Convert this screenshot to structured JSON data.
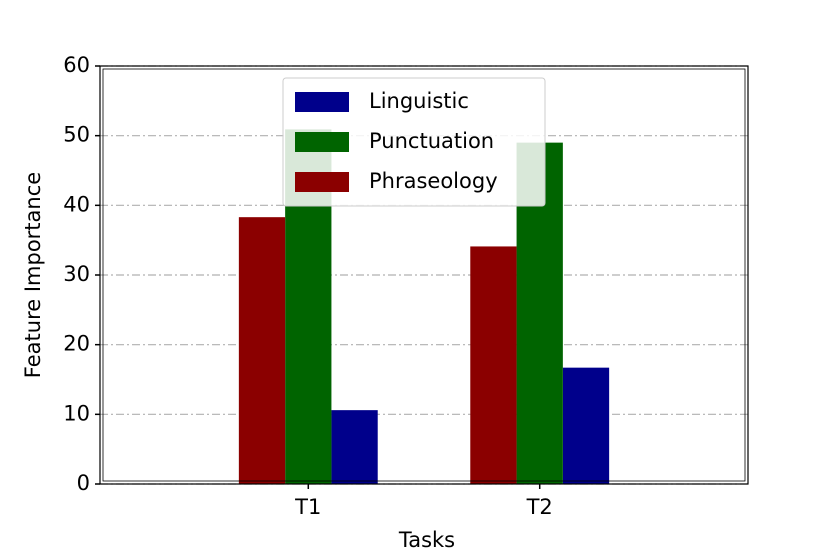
{
  "chart_data": {
    "type": "bar",
    "x_label": "Tasks",
    "y_label": "Feature Importance",
    "categories": [
      "T1",
      "T2"
    ],
    "series": [
      {
        "name": "Linguistic",
        "color": "#00008b",
        "values": [
          10.6,
          16.7
        ]
      },
      {
        "name": "Punctuation",
        "color": "#006400",
        "values": [
          50.9,
          49
        ]
      },
      {
        "name": "Phraseology",
        "color": "#8b0000",
        "values": [
          38.3,
          34.1
        ]
      }
    ],
    "ylim": [
      0,
      60
    ],
    "yticks": [
      0,
      10,
      20,
      30,
      40,
      50,
      60
    ],
    "grid": true,
    "legend": "upper center"
  }
}
